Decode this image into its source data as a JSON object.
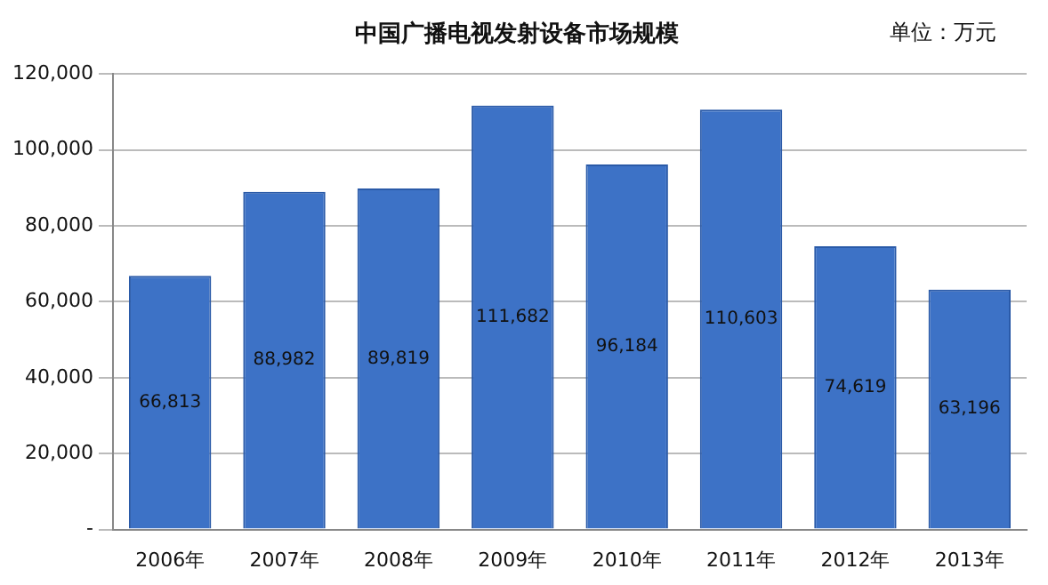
{
  "chart_data": {
    "type": "bar",
    "title": "中国广播电视发射设备市场规模",
    "annotations": [
      "单位：万元"
    ],
    "categories": [
      "2006年",
      "2007年",
      "2008年",
      "2009年",
      "2010年",
      "2011年",
      "2012年",
      "2013年"
    ],
    "values": [
      66813,
      88982,
      89819,
      111682,
      96184,
      110603,
      74619,
      63196
    ],
    "color": "#3d72c6",
    "ylim": [
      0,
      120000
    ],
    "yticks": [
      {
        "value": 0,
        "label": "-"
      },
      {
        "value": 20000,
        "label": "20,000"
      },
      {
        "value": 40000,
        "label": "40,000"
      },
      {
        "value": 60000,
        "label": "60,000"
      },
      {
        "value": 80000,
        "label": "80,000"
      },
      {
        "value": 100000,
        "label": "100,000"
      },
      {
        "value": 120000,
        "label": "120,000"
      }
    ],
    "grid": "y",
    "legend": false,
    "value_labels": [
      "66,813",
      "88,982",
      "89,819",
      "111,682",
      "96,184",
      "110,603",
      "74,619",
      "63,196"
    ]
  }
}
